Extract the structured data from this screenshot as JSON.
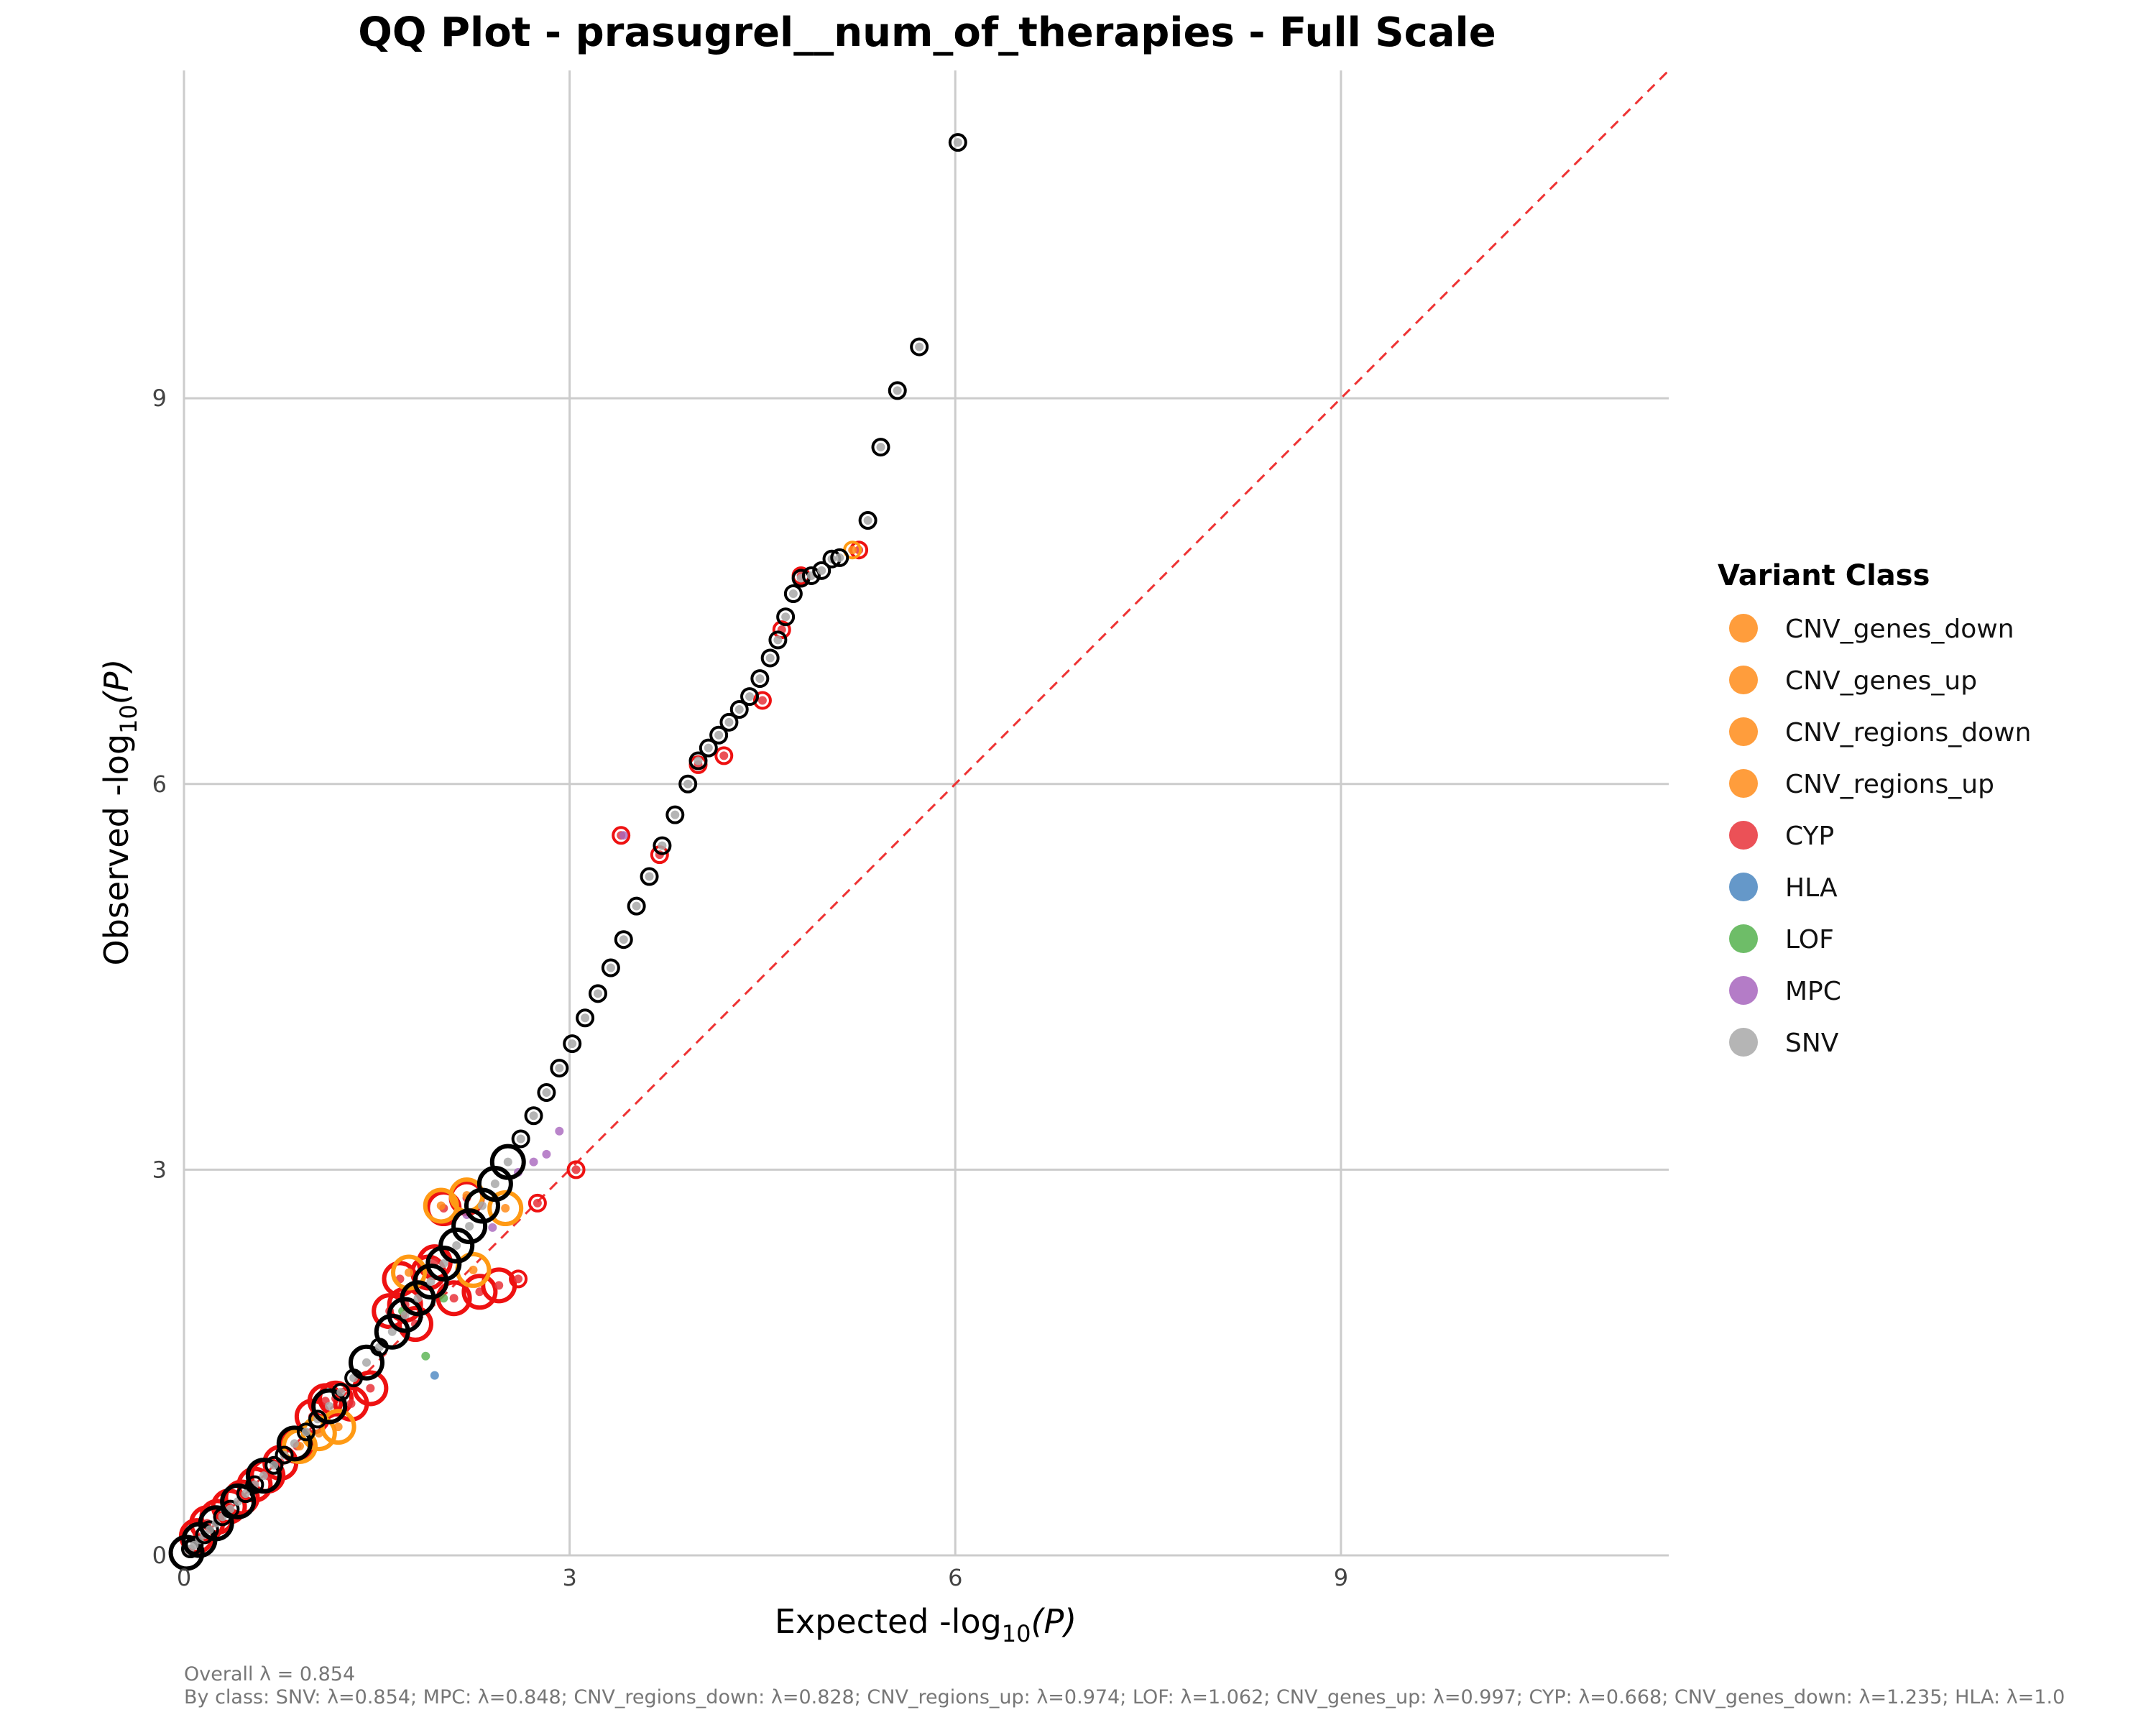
{
  "chart_data": {
    "type": "scatter",
    "title": "QQ Plot - prasugrel__num_of_therapies - Full Scale",
    "xlabel_pre": "Expected  -log",
    "xlabel_sub": "10",
    "xlabel_post": "(P)",
    "ylabel_pre": "Observed  -log",
    "ylabel_sub": "10",
    "ylabel_post": "(P)",
    "xlim": [
      0,
      11.55
    ],
    "ylim": [
      0,
      11.55
    ],
    "xticks": [
      "0",
      "3",
      "6",
      "9"
    ],
    "yticks": [
      "0",
      "3",
      "6",
      "9"
    ],
    "grid": true,
    "reference_line": {
      "from": [
        0,
        0
      ],
      "to": [
        11.55,
        11.55
      ],
      "color": "#ee3333",
      "style": "dashed"
    },
    "legend": {
      "title": "Variant Class",
      "placement": "right",
      "items": [
        {
          "label": "CNV_genes_down",
          "color": "#ff8c1a"
        },
        {
          "label": "CNV_genes_up",
          "color": "#ff8c1a"
        },
        {
          "label": "CNV_regions_down",
          "color": "#ff8c1a"
        },
        {
          "label": "CNV_regions_up",
          "color": "#ff8c1a"
        },
        {
          "label": "CYP",
          "color": "#e8323a"
        },
        {
          "label": "HLA",
          "color": "#4a86c0"
        },
        {
          "label": "LOF",
          "color": "#55b24d"
        },
        {
          "label": "MPC",
          "color": "#a765bd"
        },
        {
          "label": "SNV",
          "color": "#a8a8a8"
        }
      ]
    },
    "series": [
      {
        "name": "SNV",
        "color": "#a8a8a8",
        "x": [
          0.02,
          0.05,
          0.08,
          0.12,
          0.16,
          0.2,
          0.25,
          0.3,
          0.36,
          0.42,
          0.48,
          0.55,
          0.62,
          0.7,
          0.78,
          0.86,
          0.95,
          1.04,
          1.13,
          1.22,
          1.32,
          1.42,
          1.52,
          1.62,
          1.72,
          1.82,
          1.92,
          2.02,
          2.12,
          2.22,
          2.32,
          2.42,
          2.52,
          2.62,
          2.72,
          2.82,
          2.92,
          3.02,
          3.12,
          3.22,
          3.32,
          3.42,
          3.52,
          3.62,
          3.72,
          3.82,
          3.92,
          4.0,
          4.08,
          4.16,
          4.24,
          4.32,
          4.4,
          4.48,
          4.56,
          4.62,
          4.68,
          4.74,
          4.8,
          4.88,
          4.96,
          5.04,
          5.1,
          5.32,
          5.42,
          5.55,
          5.72,
          6.02
        ],
        "y": [
          0.02,
          0.05,
          0.08,
          0.12,
          0.16,
          0.2,
          0.25,
          0.3,
          0.36,
          0.42,
          0.48,
          0.55,
          0.62,
          0.7,
          0.78,
          0.87,
          0.96,
          1.06,
          1.16,
          1.27,
          1.38,
          1.5,
          1.62,
          1.74,
          1.87,
          2.0,
          2.13,
          2.27,
          2.41,
          2.56,
          2.72,
          2.89,
          3.06,
          3.24,
          3.42,
          3.6,
          3.79,
          3.98,
          4.18,
          4.37,
          4.57,
          4.79,
          5.05,
          5.28,
          5.52,
          5.76,
          6.0,
          6.18,
          6.28,
          6.38,
          6.48,
          6.58,
          6.68,
          6.82,
          6.98,
          7.12,
          7.3,
          7.48,
          7.6,
          7.62,
          7.66,
          7.75,
          7.76,
          8.05,
          8.62,
          9.06,
          9.4,
          10.99
        ]
      },
      {
        "name": "CYP",
        "color": "#e8323a",
        "x": [
          0.1,
          0.18,
          0.26,
          0.35,
          0.45,
          0.55,
          0.65,
          0.75,
          0.88,
          1.0,
          1.1,
          1.18,
          1.3,
          1.45,
          1.6,
          1.68,
          1.72,
          1.8,
          1.9,
          1.95,
          2.02,
          2.1,
          2.2,
          2.3,
          2.45,
          2.6,
          2.75,
          3.05,
          3.4,
          3.7,
          4.0,
          4.2,
          4.5,
          4.65,
          4.8,
          5.25
        ],
        "y": [
          0.15,
          0.25,
          0.3,
          0.38,
          0.45,
          0.55,
          0.62,
          0.72,
          0.85,
          1.08,
          1.2,
          1.22,
          1.18,
          1.3,
          1.9,
          2.15,
          1.95,
          1.8,
          2.2,
          2.28,
          2.7,
          2.0,
          2.78,
          2.05,
          2.1,
          2.15,
          2.74,
          3.0,
          5.6,
          5.45,
          6.15,
          6.22,
          6.65,
          7.2,
          7.62,
          7.82
        ]
      },
      {
        "name": "CNV_regions_up",
        "color": "#ff8c1a",
        "x": [
          0.9,
          1.05,
          1.2,
          1.75,
          2.0,
          2.2,
          2.25,
          2.5,
          5.2
        ],
        "y": [
          0.85,
          0.95,
          1.0,
          2.2,
          2.72,
          2.8,
          2.22,
          2.7,
          7.82
        ]
      },
      {
        "name": "MPC",
        "color": "#a765bd",
        "x": [
          2.2,
          2.4,
          2.6,
          2.72,
          2.82,
          2.92,
          3.42
        ],
        "y": [
          2.65,
          2.55,
          2.98,
          3.06,
          3.12,
          3.3,
          5.6
        ]
      },
      {
        "name": "LOF",
        "color": "#55b24d",
        "x": [
          1.7,
          1.88,
          2.02
        ],
        "y": [
          1.9,
          1.55,
          2.0
        ]
      },
      {
        "name": "HLA",
        "color": "#4a86c0",
        "x": [
          1.95
        ],
        "y": [
          1.4
        ]
      }
    ],
    "annotations": {
      "overall": "Overall λ = 0.854",
      "by_class": "By class: SNV: λ=0.854; MPC: λ=0.848; CNV_regions_down: λ=0.828; CNV_regions_up: λ=0.974; LOF: λ=1.062; CNV_genes_up: λ=0.997; CYP: λ=0.668; CNV_genes_down: λ=1.235; HLA: λ=1.0"
    }
  }
}
